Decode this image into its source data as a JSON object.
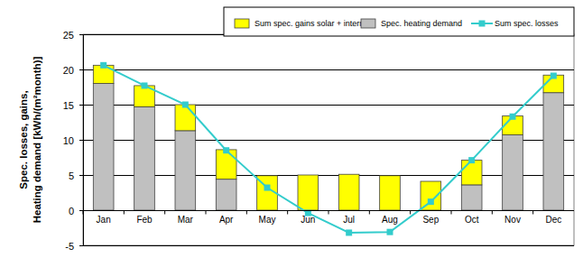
{
  "chart_data": {
    "type": "bar",
    "ylabel": [
      "Spec. losses,  gains,",
      "Heating demand [kWh/(m²month)]"
    ],
    "categories": [
      "Jan",
      "Feb",
      "Mar",
      "Apr",
      "May",
      "Jun",
      "Jul",
      "Aug",
      "Sep",
      "Oct",
      "Nov",
      "Dec"
    ],
    "series": [
      {
        "name": "Sum spec. gains solar + internal",
        "type": "bar",
        "color": "#ffff00",
        "values": [
          2.6,
          3.0,
          3.7,
          4.2,
          4.9,
          5.0,
          5.1,
          4.9,
          4.1,
          3.5,
          2.7,
          2.5
        ]
      },
      {
        "name": "Spec. heating demand",
        "type": "bar",
        "color": "#c0c0c0",
        "values": [
          18.0,
          14.7,
          11.3,
          4.4,
          0,
          0,
          0,
          0,
          0,
          3.6,
          10.7,
          16.7
        ]
      },
      {
        "name": "Sum spec. losses",
        "type": "line",
        "color": "#33cccc",
        "marker": "square",
        "line_style": "solid",
        "values": [
          20.6,
          17.7,
          15.0,
          8.5,
          3.2,
          -0.4,
          -3.2,
          -3.1,
          1.2,
          7.1,
          13.3,
          19.1
        ]
      }
    ],
    "stacked": true,
    "ylim": [
      -5,
      25
    ],
    "yticks": [
      -5,
      0,
      5,
      10,
      15,
      20,
      25
    ],
    "grid": true,
    "legend": "top-right"
  }
}
